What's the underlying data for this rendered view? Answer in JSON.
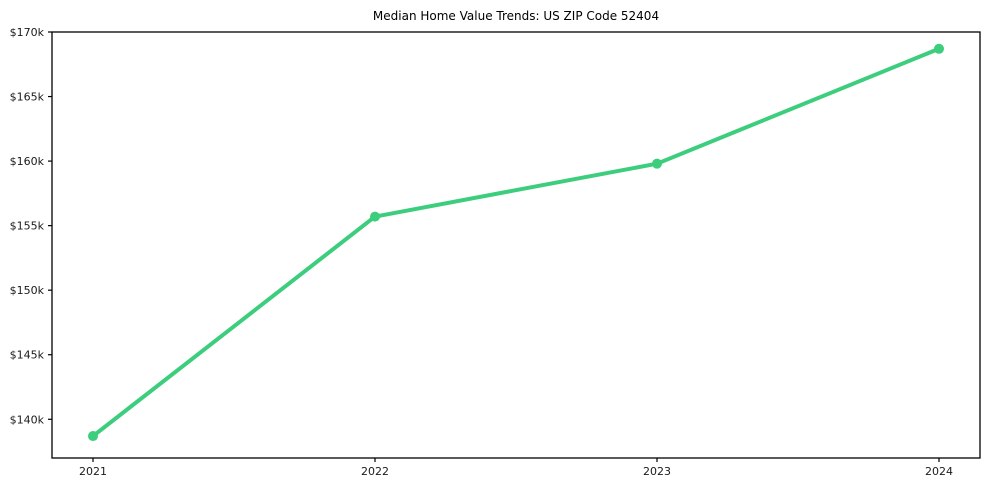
{
  "chart_data": {
    "type": "line",
    "title": "Median Home Value Trends: US ZIP Code 52404",
    "x": [
      2021,
      2022,
      2023,
      2024
    ],
    "x_tick_labels": [
      "2021",
      "2022",
      "2023",
      "2024"
    ],
    "series": [
      {
        "name": "Median Home Value",
        "values": [
          138700,
          155700,
          159800,
          168700
        ],
        "color": "#3ccd7d"
      }
    ],
    "ylim": [
      137000,
      170000
    ],
    "yticks": [
      140000,
      145000,
      150000,
      155000,
      160000,
      165000,
      170000
    ],
    "y_tick_labels": [
      "$140k",
      "$145k",
      "$150k",
      "$155k",
      "$160k",
      "$165k",
      "$170k"
    ],
    "xlabel": "",
    "ylabel": "",
    "grid": false,
    "legend": "none",
    "marker": "circle",
    "line_width": 4,
    "marker_radius": 5,
    "axis_color": "#000000",
    "text_color": "#1a1a1a",
    "background": "#ffffff"
  }
}
